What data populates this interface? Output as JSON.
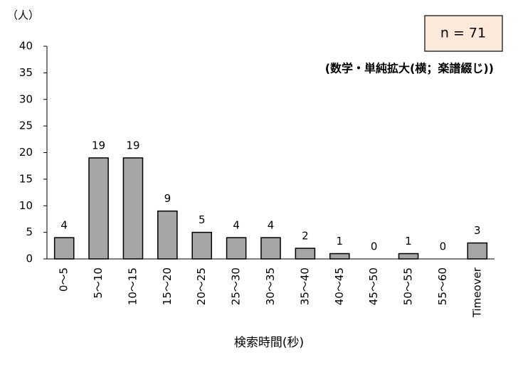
{
  "chart_data": {
    "type": "bar",
    "y_label": "（人）",
    "annotation": "n = 71",
    "subtitle": "(数学・単純拡大(横；楽譜綴じ))",
    "x_label": "検索時間(秒)",
    "categories": [
      "0～5",
      "5～10",
      "10～15",
      "15～20",
      "20～25",
      "25～30",
      "30～35",
      "35～40",
      "40～45",
      "45～50",
      "50～55",
      "55～60",
      "Timeover"
    ],
    "values": [
      4,
      19,
      19,
      9,
      5,
      4,
      4,
      2,
      1,
      0,
      1,
      0,
      3
    ],
    "color": "#a6a6a6",
    "ylim": [
      0,
      40
    ],
    "yticks": [
      0,
      5,
      10,
      15,
      20,
      25,
      30,
      35,
      40
    ],
    "grid": false
  }
}
